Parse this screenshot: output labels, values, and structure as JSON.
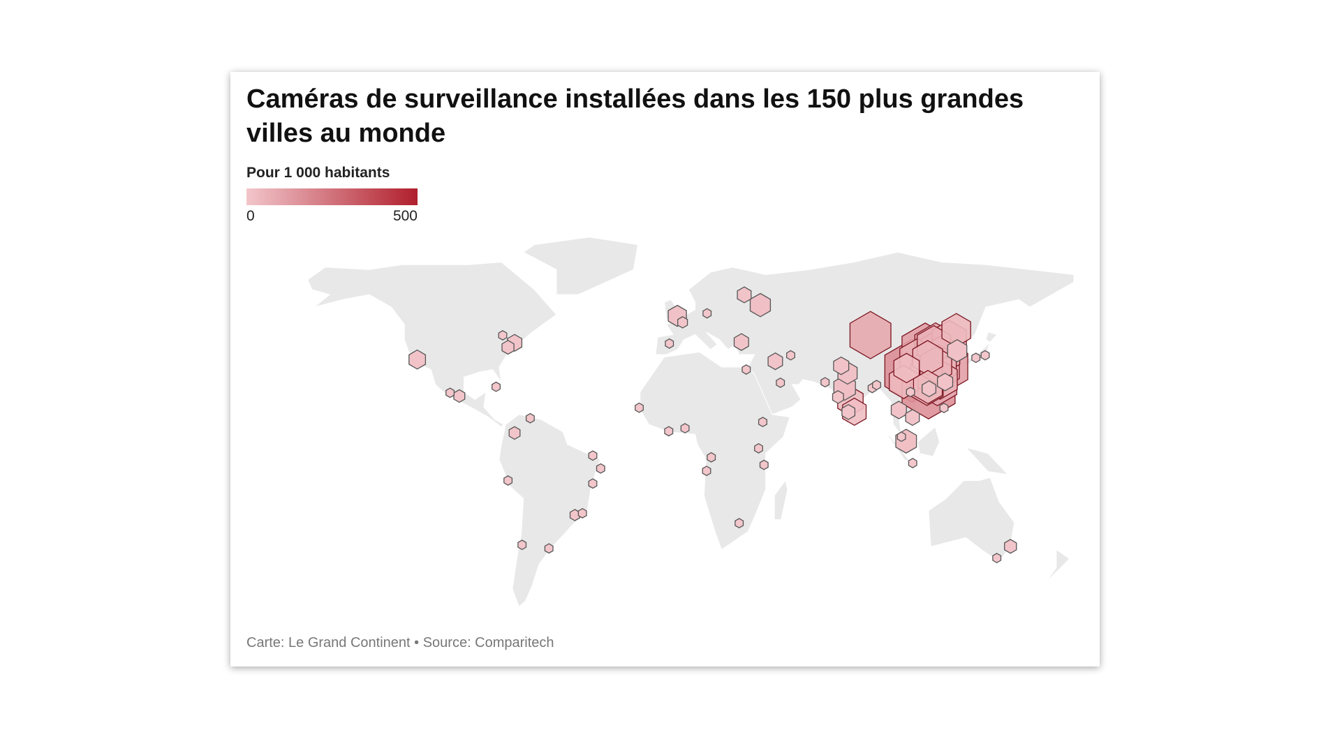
{
  "chart_data": {
    "type": "map",
    "title": "Caméras de surveillance installées dans les 150 plus grandes villes au monde",
    "legend": {
      "title": "Pour 1 000 habitants",
      "ticks": [
        0,
        500
      ],
      "colors": [
        "#f2c6cb",
        "#b01f2c"
      ]
    },
    "source": "Carte: Le Grand Continent • Source: Comparitech",
    "markers": [
      {
        "lon": 106.5,
        "lat": 29.5,
        "value": 168
      },
      {
        "lon": 114.0,
        "lat": 22.5,
        "value": 159
      },
      {
        "lon": 112.5,
        "lat": 37.9,
        "value": 119
      },
      {
        "lon": 121.5,
        "lat": 31.2,
        "value": 113
      },
      {
        "lon": 117.2,
        "lat": 39.1,
        "value": 93
      },
      {
        "lon": 87.6,
        "lat": 43.8,
        "value": 90
      },
      {
        "lon": 118.0,
        "lat": 24.5,
        "value": 80
      },
      {
        "lon": 117.0,
        "lat": 36.7,
        "value": 74
      },
      {
        "lon": 108.9,
        "lat": 34.3,
        "value": 63
      },
      {
        "lon": 114.3,
        "lat": 30.6,
        "value": 60
      },
      {
        "lon": 120.2,
        "lat": 30.3,
        "value": 60
      },
      {
        "lon": 123.4,
        "lat": 41.8,
        "value": 60
      },
      {
        "lon": 120.4,
        "lat": 36.0,
        "value": 60
      },
      {
        "lon": 118.8,
        "lat": 32.0,
        "value": 60
      },
      {
        "lon": 119.3,
        "lat": 26.0,
        "value": 60
      },
      {
        "lon": 116.4,
        "lat": 39.9,
        "value": 56
      },
      {
        "lon": 113.3,
        "lat": 23.1,
        "value": 53
      },
      {
        "lon": 113.0,
        "lat": 28.2,
        "value": 50
      },
      {
        "lon": 117.3,
        "lat": 31.8,
        "value": 50
      },
      {
        "lon": 113.6,
        "lat": 34.7,
        "value": 44
      },
      {
        "lon": 126.6,
        "lat": 45.8,
        "value": 40
      },
      {
        "lon": 102.7,
        "lat": 25.0,
        "value": 40
      },
      {
        "lon": 113.7,
        "lat": 23.0,
        "value": 40
      },
      {
        "lon": 104.0,
        "lat": 30.6,
        "value": 30
      },
      {
        "lon": 78.5,
        "lat": 17.4,
        "value": 30
      },
      {
        "lon": 80.3,
        "lat": 13.1,
        "value": 25
      },
      {
        "lon": 75.9,
        "lat": 22.7,
        "value": 20
      },
      {
        "lon": 103.8,
        "lat": 1.3,
        "value": 18
      },
      {
        "lon": 37.6,
        "lat": 55.8,
        "value": 17
      },
      {
        "lon": 77.2,
        "lat": 28.6,
        "value": 15
      },
      {
        "lon": 127.0,
        "lat": 37.5,
        "value": 15
      },
      {
        "lon": -0.1,
        "lat": 51.5,
        "value": 13
      },
      {
        "lon": -118.2,
        "lat": 34.0,
        "value": 10
      },
      {
        "lon": 114.2,
        "lat": 22.3,
        "value": 6
      },
      {
        "lon": 121.5,
        "lat": 25.0,
        "value": 8
      },
      {
        "lon": 74.3,
        "lat": 31.5,
        "value": 8
      },
      {
        "lon": 100.5,
        "lat": 13.8,
        "value": 8
      },
      {
        "lon": 29.0,
        "lat": 41.0,
        "value": 7
      },
      {
        "lon": 44.4,
        "lat": 33.3,
        "value": 7
      },
      {
        "lon": -74.0,
        "lat": 40.7,
        "value": 7
      },
      {
        "lon": 30.3,
        "lat": 59.9,
        "value": 6
      },
      {
        "lon": 106.7,
        "lat": 10.8,
        "value": 6
      },
      {
        "lon": 77.6,
        "lat": 13.0,
        "value": 5
      },
      {
        "lon": 151.2,
        "lat": -33.9,
        "value": 4
      },
      {
        "lon": -77.0,
        "lat": 38.9,
        "value": 4
      },
      {
        "lon": 72.9,
        "lat": 19.0,
        "value": 3
      },
      {
        "lon": -99.1,
        "lat": 19.4,
        "value": 3
      },
      {
        "lon": -74.0,
        "lat": 4.6,
        "value": 3
      },
      {
        "lon": 2.3,
        "lat": 48.9,
        "value": 2
      },
      {
        "lon": -46.6,
        "lat": -23.5,
        "value": 2
      },
      {
        "lon": 88.4,
        "lat": 22.6,
        "value": 1
      },
      {
        "lon": 67.0,
        "lat": 24.9,
        "value": 1
      },
      {
        "lon": 13.4,
        "lat": 52.5,
        "value": 1
      },
      {
        "lon": -3.7,
        "lat": 40.4,
        "value": 1
      },
      {
        "lon": 106.8,
        "lat": -6.2,
        "value": 1
      },
      {
        "lon": 121.0,
        "lat": 14.6,
        "value": 1
      },
      {
        "lon": 139.7,
        "lat": 35.7,
        "value": 1
      },
      {
        "lon": 135.5,
        "lat": 34.7,
        "value": 1
      },
      {
        "lon": 145.0,
        "lat": -37.8,
        "value": 1
      },
      {
        "lon": -79.4,
        "lat": 43.7,
        "value": 1
      },
      {
        "lon": -103.3,
        "lat": 20.7,
        "value": 1
      },
      {
        "lon": -77.0,
        "lat": -12.0,
        "value": 1
      },
      {
        "lon": -43.2,
        "lat": -22.9,
        "value": 1
      },
      {
        "lon": -58.4,
        "lat": -34.6,
        "value": 1
      },
      {
        "lon": -70.6,
        "lat": -33.4,
        "value": 1
      },
      {
        "lon": 31.2,
        "lat": 30.0,
        "value": 1
      },
      {
        "lon": 3.4,
        "lat": 6.5,
        "value": 1
      },
      {
        "lon": 15.3,
        "lat": -4.3,
        "value": 1
      },
      {
        "lon": 36.8,
        "lat": -1.3,
        "value": 1
      },
      {
        "lon": 28.0,
        "lat": -26.2,
        "value": 1
      },
      {
        "lon": 13.2,
        "lat": -8.8,
        "value": 1
      },
      {
        "lon": 39.3,
        "lat": -6.8,
        "value": 1
      },
      {
        "lon": 38.7,
        "lat": 9.0,
        "value": 1
      },
      {
        "lon": 46.7,
        "lat": 24.7,
        "value": 1
      },
      {
        "lon": 51.4,
        "lat": 35.7,
        "value": 1
      },
      {
        "lon": 90.4,
        "lat": 23.8,
        "value": 1
      },
      {
        "lon": 105.8,
        "lat": 21.0,
        "value": 1
      },
      {
        "lon": 101.7,
        "lat": 3.1,
        "value": 1
      },
      {
        "lon": -4.0,
        "lat": 5.3,
        "value": 1
      },
      {
        "lon": -17.4,
        "lat": 14.7,
        "value": 1
      },
      {
        "lon": -34.9,
        "lat": -8.0,
        "value": 1
      },
      {
        "lon": -38.5,
        "lat": -13.0,
        "value": 1
      },
      {
        "lon": -38.5,
        "lat": -3.7,
        "value": 1
      },
      {
        "lon": -66.9,
        "lat": 10.5,
        "value": 1
      },
      {
        "lon": -82.4,
        "lat": 23.1,
        "value": 1
      }
    ]
  }
}
